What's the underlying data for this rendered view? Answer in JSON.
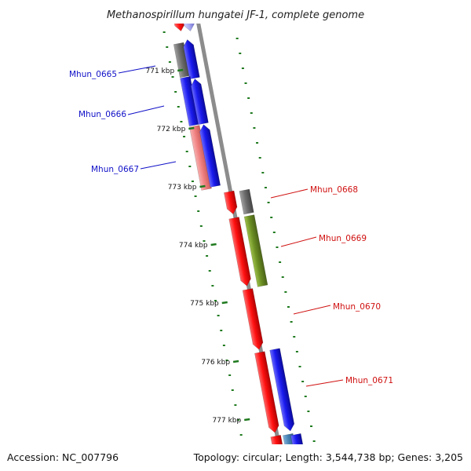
{
  "title": "Methanospirillum hungatei JF-1, complete genome",
  "footer": {
    "accession": "Accession: NC_007796",
    "summary": "Topology: circular; Length: 3,544,738 bp; Genes: 3,205"
  },
  "colors": {
    "backbone": "#8c8c8c",
    "tick_marks": "#1f7a1f",
    "reverse_labels": "#1010c8",
    "forward_labels": "#d01010",
    "gene_red": "#ff1010",
    "gene_blue": "#1a1aee",
    "gene_gray": "#6e6e6e",
    "gene_pink": "#f08080",
    "gene_olive": "#6b8e23",
    "gene_teal": "#4682b4"
  },
  "ticks": [
    {
      "label": "771 kbp"
    },
    {
      "label": "772 kbp"
    },
    {
      "label": "773 kbp"
    },
    {
      "label": "774 kbp"
    },
    {
      "label": "775 kbp"
    },
    {
      "label": "776 kbp"
    },
    {
      "label": "777 kbp"
    }
  ],
  "gene_labels": [
    {
      "text": "Mhun_0665",
      "strand": "reverse"
    },
    {
      "text": "Mhun_0666",
      "strand": "reverse"
    },
    {
      "text": "Mhun_0667",
      "strand": "reverse"
    },
    {
      "text": "Mhun_0668",
      "strand": "forward"
    },
    {
      "text": "Mhun_0669",
      "strand": "forward"
    },
    {
      "text": "Mhun_0670",
      "strand": "forward"
    },
    {
      "text": "Mhun_0671",
      "strand": "forward"
    }
  ]
}
